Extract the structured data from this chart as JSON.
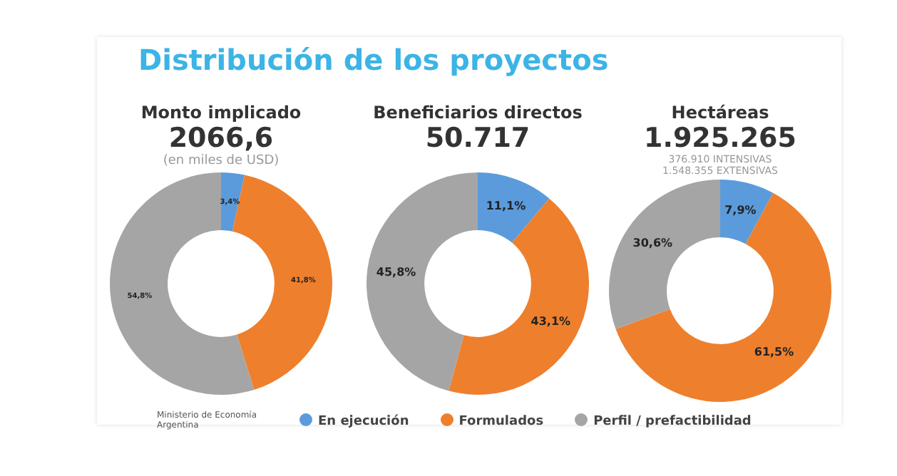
{
  "chart_data": [
    {
      "type": "donut",
      "title": "Monto implicado",
      "subtitle": "2066,6",
      "annotations": [
        "Distribución de los proyectos",
        "(en miles de USD)",
        "Ministerio de Economía Argentina"
      ],
      "categories": [
        "En ejecución",
        "Formulados",
        "Perfil / prefactibilidad"
      ],
      "values": [
        3.4,
        41.8,
        54.8
      ],
      "colors": [
        "#5b9bdc",
        "#ee7f2d",
        "#a5a5a5"
      ],
      "value_labels": [
        "3,4%",
        "41,8%",
        "54,8%"
      ],
      "legend": "bottom"
    },
    {
      "type": "donut",
      "title": "Beneficiarios directos",
      "subtitle": "50.717",
      "categories": [
        null,
        null,
        null
      ],
      "values": [
        11.1,
        43.1,
        45.8
      ],
      "colors": [
        "#5b9bdc",
        "#ee7f2d",
        "#a5a5a5"
      ],
      "value_labels": [
        "11,1%",
        "43,1%",
        "45,8%"
      ]
    },
    {
      "type": "donut",
      "title": "Hectáreas",
      "subtitle": "1.925.265",
      "annotations": [
        "376.910  INTENSIVAS",
        "1.548.355  EXTENSIVAS"
      ],
      "categories": [
        null,
        null,
        null
      ],
      "values": [
        7.9,
        61.5,
        30.6
      ],
      "colors": [
        "#5b9bdc",
        "#ee7f2d",
        "#a5a5a5"
      ],
      "value_labels": [
        "7,9%",
        "61,5%",
        "30,6%"
      ]
    }
  ]
}
